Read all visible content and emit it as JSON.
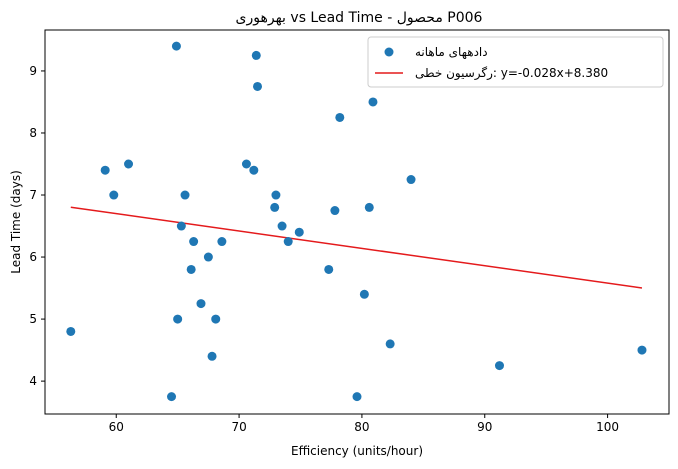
{
  "chart_data": {
    "type": "scatter",
    "title": "بهرهوری vs Lead Time - محصول P006",
    "xlabel": "Efficiency (units/hour)",
    "ylabel": "Lead Time (days)",
    "xlim": [
      54.2,
      105.0
    ],
    "ylim": [
      3.47,
      9.66
    ],
    "xticks": [
      60,
      70,
      80,
      90,
      100
    ],
    "yticks": [
      4,
      5,
      6,
      7,
      8,
      9
    ],
    "grid": false,
    "legend_position": "top-right",
    "series": [
      {
        "name": "دادههای ماهانه",
        "kind": "scatter",
        "color": "#1f77b4",
        "points": [
          [
            56.3,
            4.8
          ],
          [
            59.1,
            7.4
          ],
          [
            59.8,
            7.0
          ],
          [
            61.0,
            7.5
          ],
          [
            64.5,
            3.75
          ],
          [
            64.9,
            9.4
          ],
          [
            65.0,
            5.0
          ],
          [
            65.3,
            6.5
          ],
          [
            65.6,
            7.0
          ],
          [
            66.1,
            5.8
          ],
          [
            66.3,
            6.25
          ],
          [
            66.9,
            5.25
          ],
          [
            67.5,
            6.0
          ],
          [
            67.8,
            4.4
          ],
          [
            68.1,
            5.0
          ],
          [
            68.6,
            6.25
          ],
          [
            70.6,
            7.5
          ],
          [
            71.2,
            7.4
          ],
          [
            71.4,
            9.25
          ],
          [
            71.5,
            8.75
          ],
          [
            72.9,
            6.8
          ],
          [
            73.0,
            7.0
          ],
          [
            73.5,
            6.5
          ],
          [
            74.0,
            6.25
          ],
          [
            74.9,
            6.4
          ],
          [
            77.3,
            5.8
          ],
          [
            77.8,
            6.75
          ],
          [
            78.2,
            8.25
          ],
          [
            79.6,
            3.75
          ],
          [
            80.2,
            5.4
          ],
          [
            80.6,
            6.8
          ],
          [
            80.9,
            8.5
          ],
          [
            82.3,
            4.6
          ],
          [
            84.0,
            7.25
          ],
          [
            91.2,
            4.25
          ],
          [
            102.8,
            4.5
          ]
        ]
      },
      {
        "name": "رگرسیون خطی: y=-0.028x+8.380",
        "kind": "line",
        "color": "#e41a1c",
        "x_range": [
          56.3,
          102.8
        ],
        "slope": -0.028,
        "intercept": 8.38
      }
    ]
  }
}
